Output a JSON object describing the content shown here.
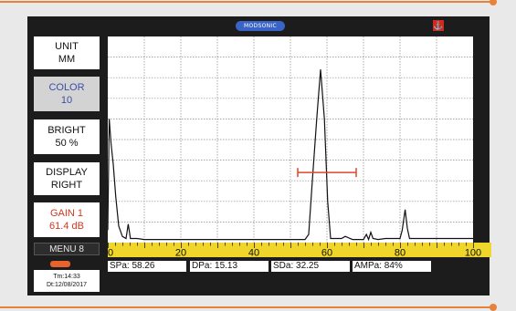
{
  "header": {
    "logo_text": "MODSONIC",
    "icon": "anchor-icon"
  },
  "menu": [
    {
      "line1": "UNIT",
      "line2": "MM",
      "selected": false
    },
    {
      "line1": "COLOR",
      "line2": "10",
      "selected": true
    },
    {
      "line1": "BRIGHT",
      "line2": "50  %",
      "selected": false
    },
    {
      "line1": "DISPLAY",
      "line2": "RIGHT",
      "selected": false
    },
    {
      "line1": "GAIN 1",
      "line2": "61.4 dB",
      "selected": false
    }
  ],
  "menu_page": "MENU 8",
  "status": {
    "time": "Tm:14:33",
    "date": "Dt:12/08/2017"
  },
  "scale": {
    "min": 0,
    "max": 100,
    "labels": [
      "0",
      "20",
      "40",
      "60",
      "80",
      "100"
    ]
  },
  "readouts": [
    {
      "label": "SPa:",
      "value": "58.26"
    },
    {
      "label": "DPa:",
      "value": "15.13"
    },
    {
      "label": "SDa:",
      "value": "32.25"
    },
    {
      "label": "AMPa:",
      "value": "84%"
    }
  ],
  "gate": {
    "start": 52,
    "end": 68,
    "level_percent": 34
  },
  "colors": {
    "frame": "#1c1c1c",
    "scale": "#f0d52a",
    "gate": "#e0462a",
    "accent": "#e8823a",
    "gain_text": "#d0381f"
  }
}
